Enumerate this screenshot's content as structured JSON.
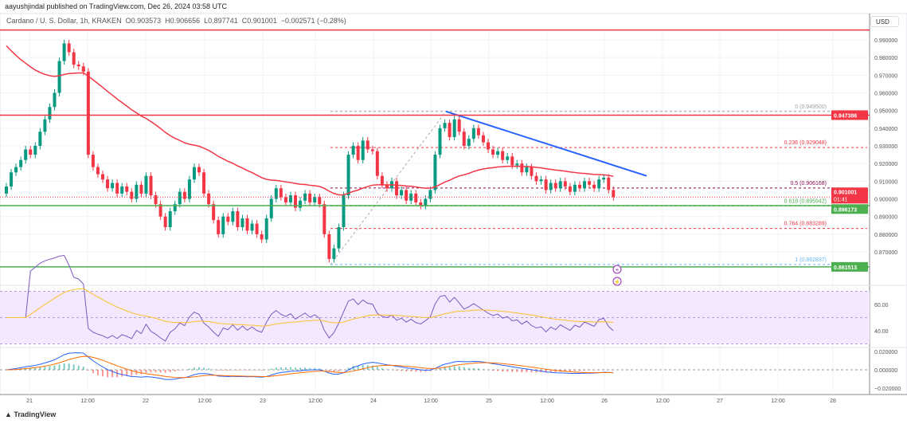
{
  "header": {
    "published": "aayushjindal published on TradingView.com, Dec 26, 2024 03:58 UTC",
    "symbol": "Cardano / U. S. Dollar, 1h, KRAKEN",
    "ohlc": "O0.903573  H0.906656  L0.897741  C0.901001  −0.002571 (−0.28%)"
  },
  "currency_button": "USD",
  "footer_logo": "TradingView",
  "colors": {
    "up": "#089981",
    "down": "#f23645",
    "ma": "#f23645",
    "trend": "#2962ff",
    "rsi": "#7e57c2",
    "rsi_band": "#f3e8fd",
    "macd": "#2962ff",
    "signal": "#ff6d00"
  },
  "chart_data": {
    "type": "candlestick",
    "interval": "1h",
    "x_ticks": [
      "21",
      "12:00",
      "22",
      "12:00",
      "23",
      "12:00",
      "24",
      "12:00",
      "25",
      "12:00",
      "26",
      "12:00",
      "27",
      "12:00",
      "28"
    ],
    "y_ticks": [
      "0.990000",
      "0.980000",
      "0.970000",
      "0.960000",
      "0.950000",
      "0.940000",
      "0.930000",
      "0.920000",
      "0.910000",
      "0.900000",
      "0.890000",
      "0.880000",
      "0.870000"
    ],
    "ylim": [
      0.858,
      0.997
    ],
    "first_open": 0.903,
    "closes": [
      0.907,
      0.915,
      0.918,
      0.922,
      0.928,
      0.925,
      0.93,
      0.938,
      0.945,
      0.952,
      0.96,
      0.978,
      0.988,
      0.983,
      0.976,
      0.975,
      0.972,
      0.925,
      0.918,
      0.914,
      0.911,
      0.906,
      0.909,
      0.903,
      0.907,
      0.904,
      0.9,
      0.908,
      0.903,
      0.913,
      0.902,
      0.897,
      0.89,
      0.884,
      0.893,
      0.897,
      0.904,
      0.9,
      0.911,
      0.918,
      0.915,
      0.903,
      0.897,
      0.888,
      0.88,
      0.89,
      0.887,
      0.893,
      0.884,
      0.889,
      0.882,
      0.886,
      0.88,
      0.877,
      0.889,
      0.9,
      0.906,
      0.901,
      0.898,
      0.902,
      0.895,
      0.899,
      0.903,
      0.898,
      0.901,
      0.897,
      0.88,
      0.866,
      0.872,
      0.884,
      0.902,
      0.925,
      0.93,
      0.922,
      0.933,
      0.928,
      0.927,
      0.913,
      0.908,
      0.906,
      0.91,
      0.902,
      0.905,
      0.899,
      0.903,
      0.898,
      0.896,
      0.9,
      0.905,
      0.925,
      0.94,
      0.943,
      0.935,
      0.945,
      0.938,
      0.93,
      0.934,
      0.94,
      0.936,
      0.932,
      0.928,
      0.925,
      0.927,
      0.922,
      0.924,
      0.919,
      0.92,
      0.915,
      0.918,
      0.913,
      0.91,
      0.911,
      0.905,
      0.909,
      0.906,
      0.91,
      0.907,
      0.904,
      0.908,
      0.906,
      0.91,
      0.908,
      0.906,
      0.911,
      0.912,
      0.905,
      0.901
    ],
    "horizontal_lines": [
      {
        "price": 0.9956,
        "color": "#f23645"
      },
      {
        "price": 0.947386,
        "color": "#f23645",
        "label": "0.947386"
      },
      {
        "price": 0.896173,
        "color": "#4caf50",
        "label": "0.896173"
      },
      {
        "price": 0.861513,
        "color": "#4caf50",
        "label": "0.861513"
      }
    ],
    "last_price": {
      "label": "0.901001",
      "countdown": "01:41"
    },
    "trendline": {
      "from": 0.9495,
      "to": 0.913
    },
    "fib_levels": [
      {
        "label": "0 (0.949500)",
        "price": 0.9495,
        "color": "#9e9e9e"
      },
      {
        "label": "0.236 (0.929048)",
        "price": 0.929048,
        "color": "#f23645"
      },
      {
        "label": "0.5 (0.906168)",
        "price": 0.906168,
        "color": "#880e4f"
      },
      {
        "label": "0.618 (0.895942)",
        "price": 0.895942,
        "color": "#4caf50"
      },
      {
        "label": "0.764 (0.883289)",
        "price": 0.883289,
        "color": "#f23645"
      },
      {
        "label": "1 (0.862837)",
        "price": 0.862837,
        "color": "#64b5f6"
      }
    ],
    "rsi": {
      "ticks": [
        "60.00",
        "40.00"
      ]
    },
    "macd": {
      "ticks": [
        "0.020000",
        "0.000000",
        "−0.020000"
      ]
    }
  }
}
